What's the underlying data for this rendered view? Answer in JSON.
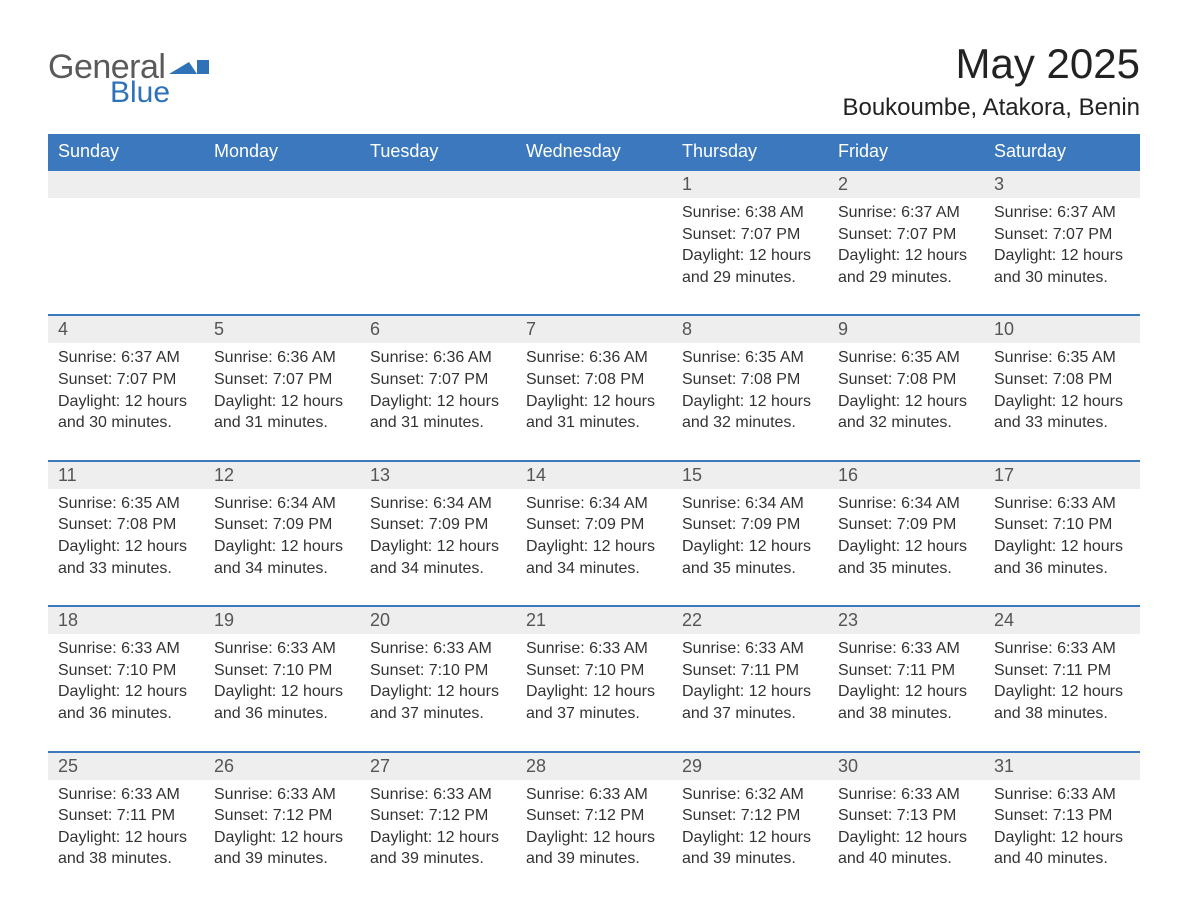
{
  "brand": {
    "text1": "General",
    "text2": "Blue",
    "flag_color": "#2f72b8",
    "text1_color": "#5a5a5a"
  },
  "title": "May 2025",
  "location": "Boukoumbe, Atakora, Benin",
  "colors": {
    "header_bg": "#3b78bd",
    "header_text": "#ffffff",
    "daynum_bg": "#eeeeee",
    "daynum_text": "#555555",
    "body_text": "#333333",
    "row_border": "#3b78bd",
    "page_bg": "#ffffff"
  },
  "day_headers": [
    "Sunday",
    "Monday",
    "Tuesday",
    "Wednesday",
    "Thursday",
    "Friday",
    "Saturday"
  ],
  "weeks": [
    [
      {
        "n": "",
        "d": ""
      },
      {
        "n": "",
        "d": ""
      },
      {
        "n": "",
        "d": ""
      },
      {
        "n": "",
        "d": ""
      },
      {
        "n": "1",
        "d": "Sunrise: 6:38 AM\nSunset: 7:07 PM\nDaylight: 12 hours and 29 minutes."
      },
      {
        "n": "2",
        "d": "Sunrise: 6:37 AM\nSunset: 7:07 PM\nDaylight: 12 hours and 29 minutes."
      },
      {
        "n": "3",
        "d": "Sunrise: 6:37 AM\nSunset: 7:07 PM\nDaylight: 12 hours and 30 minutes."
      }
    ],
    [
      {
        "n": "4",
        "d": "Sunrise: 6:37 AM\nSunset: 7:07 PM\nDaylight: 12 hours and 30 minutes."
      },
      {
        "n": "5",
        "d": "Sunrise: 6:36 AM\nSunset: 7:07 PM\nDaylight: 12 hours and 31 minutes."
      },
      {
        "n": "6",
        "d": "Sunrise: 6:36 AM\nSunset: 7:07 PM\nDaylight: 12 hours and 31 minutes."
      },
      {
        "n": "7",
        "d": "Sunrise: 6:36 AM\nSunset: 7:08 PM\nDaylight: 12 hours and 31 minutes."
      },
      {
        "n": "8",
        "d": "Sunrise: 6:35 AM\nSunset: 7:08 PM\nDaylight: 12 hours and 32 minutes."
      },
      {
        "n": "9",
        "d": "Sunrise: 6:35 AM\nSunset: 7:08 PM\nDaylight: 12 hours and 32 minutes."
      },
      {
        "n": "10",
        "d": "Sunrise: 6:35 AM\nSunset: 7:08 PM\nDaylight: 12 hours and 33 minutes."
      }
    ],
    [
      {
        "n": "11",
        "d": "Sunrise: 6:35 AM\nSunset: 7:08 PM\nDaylight: 12 hours and 33 minutes."
      },
      {
        "n": "12",
        "d": "Sunrise: 6:34 AM\nSunset: 7:09 PM\nDaylight: 12 hours and 34 minutes."
      },
      {
        "n": "13",
        "d": "Sunrise: 6:34 AM\nSunset: 7:09 PM\nDaylight: 12 hours and 34 minutes."
      },
      {
        "n": "14",
        "d": "Sunrise: 6:34 AM\nSunset: 7:09 PM\nDaylight: 12 hours and 34 minutes."
      },
      {
        "n": "15",
        "d": "Sunrise: 6:34 AM\nSunset: 7:09 PM\nDaylight: 12 hours and 35 minutes."
      },
      {
        "n": "16",
        "d": "Sunrise: 6:34 AM\nSunset: 7:09 PM\nDaylight: 12 hours and 35 minutes."
      },
      {
        "n": "17",
        "d": "Sunrise: 6:33 AM\nSunset: 7:10 PM\nDaylight: 12 hours and 36 minutes."
      }
    ],
    [
      {
        "n": "18",
        "d": "Sunrise: 6:33 AM\nSunset: 7:10 PM\nDaylight: 12 hours and 36 minutes."
      },
      {
        "n": "19",
        "d": "Sunrise: 6:33 AM\nSunset: 7:10 PM\nDaylight: 12 hours and 36 minutes."
      },
      {
        "n": "20",
        "d": "Sunrise: 6:33 AM\nSunset: 7:10 PM\nDaylight: 12 hours and 37 minutes."
      },
      {
        "n": "21",
        "d": "Sunrise: 6:33 AM\nSunset: 7:10 PM\nDaylight: 12 hours and 37 minutes."
      },
      {
        "n": "22",
        "d": "Sunrise: 6:33 AM\nSunset: 7:11 PM\nDaylight: 12 hours and 37 minutes."
      },
      {
        "n": "23",
        "d": "Sunrise: 6:33 AM\nSunset: 7:11 PM\nDaylight: 12 hours and 38 minutes."
      },
      {
        "n": "24",
        "d": "Sunrise: 6:33 AM\nSunset: 7:11 PM\nDaylight: 12 hours and 38 minutes."
      }
    ],
    [
      {
        "n": "25",
        "d": "Sunrise: 6:33 AM\nSunset: 7:11 PM\nDaylight: 12 hours and 38 minutes."
      },
      {
        "n": "26",
        "d": "Sunrise: 6:33 AM\nSunset: 7:12 PM\nDaylight: 12 hours and 39 minutes."
      },
      {
        "n": "27",
        "d": "Sunrise: 6:33 AM\nSunset: 7:12 PM\nDaylight: 12 hours and 39 minutes."
      },
      {
        "n": "28",
        "d": "Sunrise: 6:33 AM\nSunset: 7:12 PM\nDaylight: 12 hours and 39 minutes."
      },
      {
        "n": "29",
        "d": "Sunrise: 6:32 AM\nSunset: 7:12 PM\nDaylight: 12 hours and 39 minutes."
      },
      {
        "n": "30",
        "d": "Sunrise: 6:33 AM\nSunset: 7:13 PM\nDaylight: 12 hours and 40 minutes."
      },
      {
        "n": "31",
        "d": "Sunrise: 6:33 AM\nSunset: 7:13 PM\nDaylight: 12 hours and 40 minutes."
      }
    ]
  ]
}
